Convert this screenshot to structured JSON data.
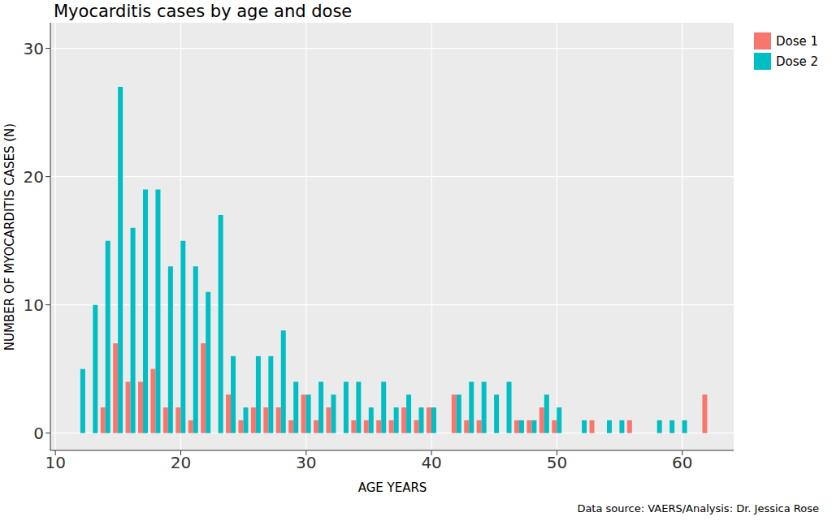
{
  "chart_data": {
    "type": "bar",
    "title": "Myocarditis cases by age and dose",
    "xlabel": "AGE YEARS",
    "ylabel": "NUMBER OF MYOCARDITIS CASES (N)",
    "annotations": [
      "Data source: VAERS/Analysis: Dr. Jessica Rose"
    ],
    "x": [
      12,
      13,
      14,
      15,
      16,
      17,
      18,
      19,
      20,
      21,
      22,
      23,
      24,
      25,
      26,
      27,
      28,
      29,
      30,
      31,
      32,
      33,
      34,
      35,
      36,
      37,
      38,
      39,
      40,
      42,
      43,
      44,
      45,
      46,
      47,
      48,
      49,
      50,
      52,
      53,
      54,
      55,
      56,
      58,
      59,
      60,
      62
    ],
    "series": [
      {
        "name": "Dose 1",
        "color": "#F8766D",
        "values": [
          0,
          0,
          2,
          7,
          4,
          4,
          5,
          2,
          2,
          1,
          7,
          0,
          3,
          1,
          2,
          2,
          2,
          1,
          3,
          1,
          2,
          0,
          1,
          1,
          1,
          1,
          2,
          1,
          2,
          3,
          1,
          1,
          0,
          0,
          1,
          1,
          2,
          1,
          0,
          1,
          0,
          0,
          1,
          0,
          0,
          0,
          3
        ]
      },
      {
        "name": "Dose 2",
        "color": "#00BFC4",
        "values": [
          5,
          10,
          15,
          27,
          16,
          19,
          19,
          13,
          15,
          13,
          11,
          17,
          6,
          2,
          6,
          6,
          8,
          4,
          3,
          4,
          3,
          4,
          4,
          2,
          4,
          2,
          3,
          2,
          2,
          3,
          4,
          4,
          3,
          4,
          1,
          1,
          3,
          2,
          1,
          0,
          1,
          1,
          0,
          1,
          1,
          1,
          0
        ]
      }
    ],
    "xlim": [
      9.6,
      64.1
    ],
    "xticks": [
      10,
      20,
      30,
      40,
      50,
      60
    ],
    "ylim": [
      -1.35,
      32
    ],
    "yticks": [
      0,
      10,
      20,
      30
    ],
    "grid": true,
    "legend": "right"
  }
}
